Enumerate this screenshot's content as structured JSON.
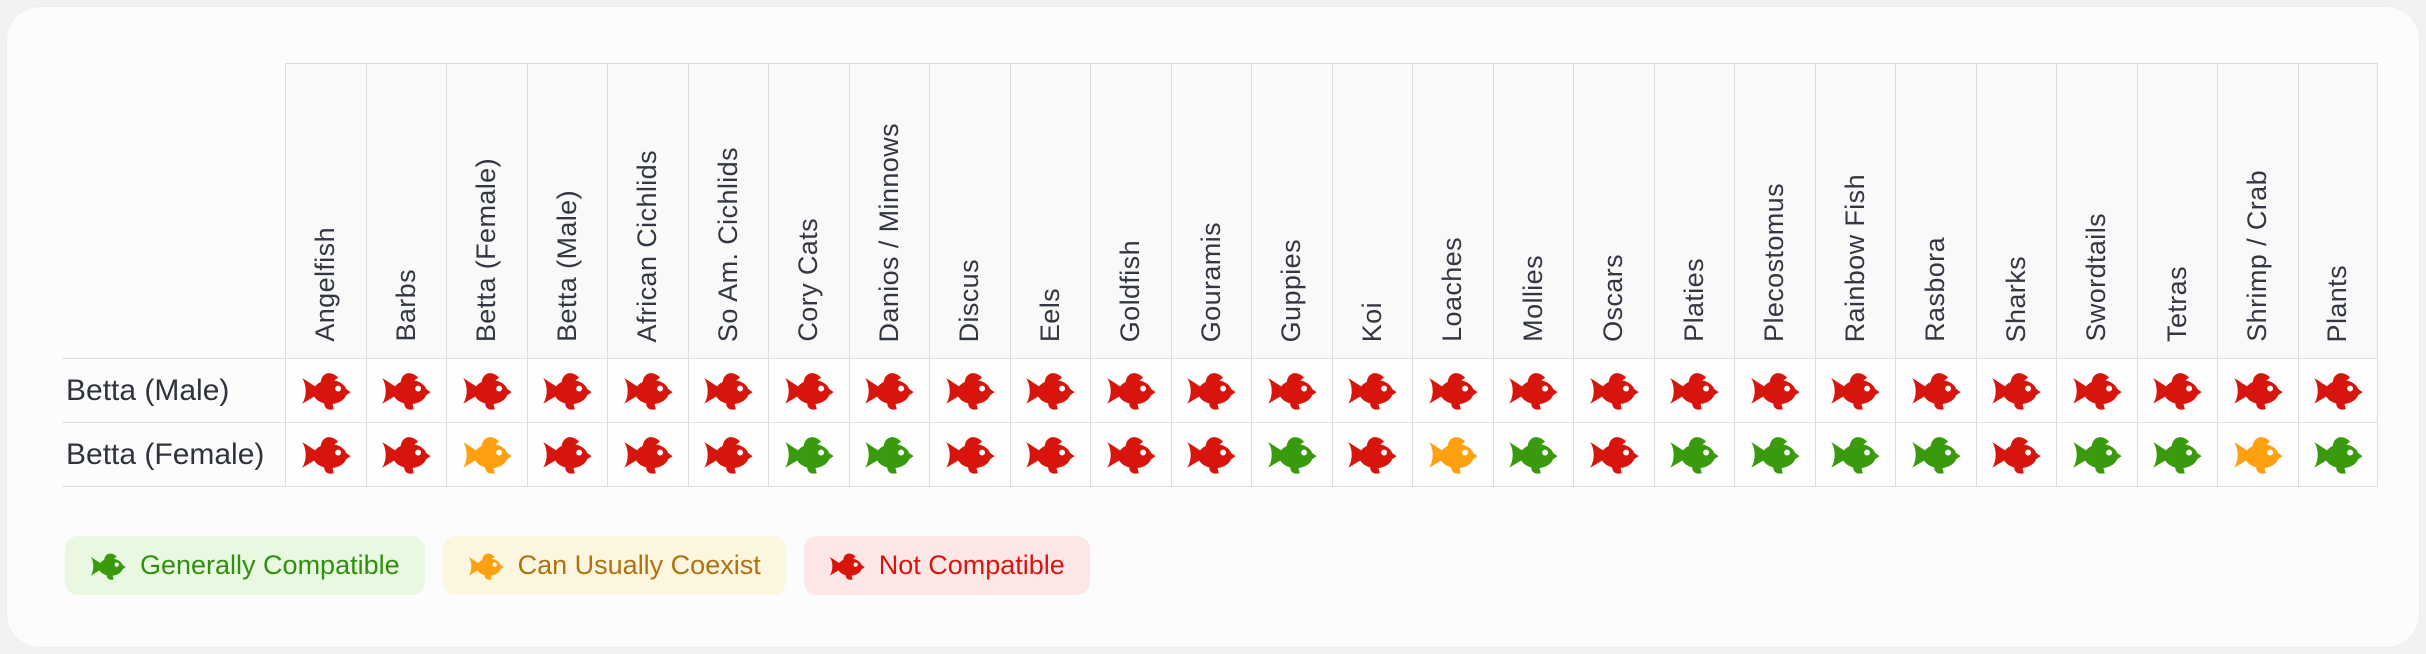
{
  "colors": {
    "generally_compatible": "#3a9a0d",
    "can_usually_coexist": "#ffa011",
    "not_compatible": "#d8150c",
    "legend_generally_bg": "#e9f9e1",
    "legend_generally_text": "#2f9010",
    "legend_coexist_bg": "#fdf6df",
    "legend_coexist_text": "#b17110",
    "legend_not_bg": "#fde7e6",
    "legend_not_text": "#d8150f",
    "header_text": "#323741",
    "row_label_text": "#2f333b",
    "grid_border": "#dcdce0",
    "row_border": "#e1e1e4",
    "header_cell_bg": "#f9f9fa",
    "cell_bg": "#fefefe",
    "card_bg": "#fcfcfd"
  },
  "table": {
    "columns": [
      "Angelfish",
      "Barbs",
      "Betta (Female)",
      "Betta (Male)",
      "African Cichlids",
      "So Am. Cichlids",
      "Cory Cats",
      "Danios / Minnows",
      "Discus",
      "Eels",
      "Goldfish",
      "Gouramis",
      "Guppies",
      "Koi",
      "Loaches",
      "Mollies",
      "Oscars",
      "Platies",
      "Plecostomus",
      "Rainbow Fish",
      "Rasbora",
      "Sharks",
      "Swordtails",
      "Tetras",
      "Shrimp / Crab",
      "Plants"
    ],
    "rows": [
      {
        "label": "Betta (Male)",
        "cells": [
          "r",
          "r",
          "r",
          "r",
          "r",
          "r",
          "r",
          "r",
          "r",
          "r",
          "r",
          "r",
          "r",
          "r",
          "r",
          "r",
          "r",
          "r",
          "r",
          "r",
          "r",
          "r",
          "r",
          "r",
          "r",
          "r"
        ]
      },
      {
        "label": "Betta (Female)",
        "cells": [
          "r",
          "r",
          "y",
          "r",
          "r",
          "r",
          "g",
          "g",
          "r",
          "r",
          "r",
          "r",
          "g",
          "r",
          "y",
          "g",
          "r",
          "g",
          "g",
          "g",
          "g",
          "r",
          "g",
          "g",
          "y",
          "g"
        ]
      }
    ]
  },
  "statuses": {
    "g": "Generally Compatible",
    "y": "Can Usually Coexist",
    "r": "Not Compatible"
  },
  "legend": {
    "items": [
      {
        "status": "g",
        "label": "Generally Compatible"
      },
      {
        "status": "y",
        "label": "Can Usually Coexist"
      },
      {
        "status": "r",
        "label": "Not Compatible"
      }
    ]
  },
  "chart_data": {
    "type": "table",
    "title": "",
    "columns": [
      "Angelfish",
      "Barbs",
      "Betta (Female)",
      "Betta (Male)",
      "African Cichlids",
      "So Am. Cichlids",
      "Cory Cats",
      "Danios / Minnows",
      "Discus",
      "Eels",
      "Goldfish",
      "Gouramis",
      "Guppies",
      "Koi",
      "Loaches",
      "Mollies",
      "Oscars",
      "Platies",
      "Plecostomus",
      "Rainbow Fish",
      "Rasbora",
      "Sharks",
      "Swordtails",
      "Tetras",
      "Shrimp / Crab",
      "Plants"
    ],
    "rows": [
      "Betta (Male)",
      "Betta (Female)"
    ],
    "code_map": {
      "G": "Generally Compatible",
      "Y": "Can Usually Coexist",
      "R": "Not Compatible"
    },
    "values": [
      [
        "R",
        "R",
        "R",
        "R",
        "R",
        "R",
        "R",
        "R",
        "R",
        "R",
        "R",
        "R",
        "R",
        "R",
        "R",
        "R",
        "R",
        "R",
        "R",
        "R",
        "R",
        "R",
        "R",
        "R",
        "R",
        "R"
      ],
      [
        "R",
        "R",
        "Y",
        "R",
        "R",
        "R",
        "G",
        "G",
        "R",
        "R",
        "R",
        "R",
        "G",
        "R",
        "Y",
        "G",
        "R",
        "G",
        "G",
        "G",
        "G",
        "R",
        "G",
        "G",
        "Y",
        "G"
      ]
    ],
    "legend": [
      "Generally Compatible",
      "Can Usually Coexist",
      "Not Compatible"
    ],
    "legend_position": "bottom-left"
  }
}
